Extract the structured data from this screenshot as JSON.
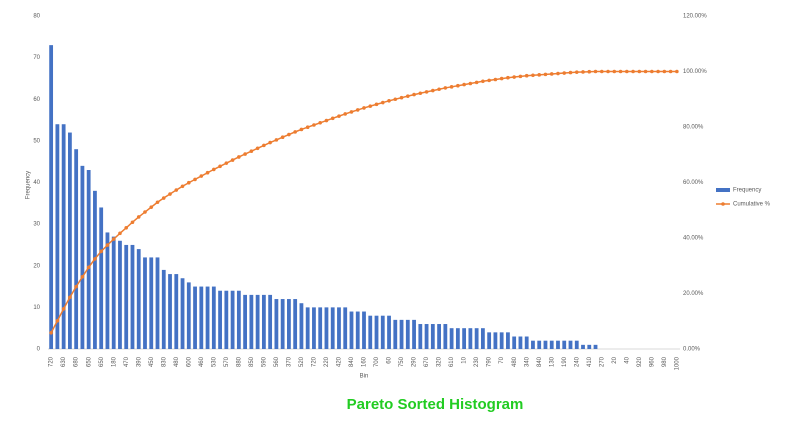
{
  "chart_data": {
    "type": "pareto",
    "title": "Pareto Sorted Histogram",
    "x_label": "Bin",
    "y_label": "Frequency",
    "categories": [
      "720",
      null,
      "630",
      null,
      "680",
      null,
      "650",
      null,
      "650",
      null,
      "180",
      null,
      "470",
      null,
      "390",
      null,
      "450",
      null,
      "830",
      null,
      "480",
      null,
      "600",
      null,
      "460",
      null,
      "530",
      null,
      "570",
      null,
      "880",
      null,
      "850",
      null,
      "590",
      null,
      "560",
      null,
      "370",
      null,
      "520",
      null,
      "720",
      null,
      "220",
      null,
      "420",
      null,
      "840",
      null,
      "160",
      null,
      "700",
      null,
      "60",
      null,
      "750",
      null,
      "290",
      null,
      "670",
      null,
      "320",
      null,
      "610",
      null,
      "10",
      null,
      "230",
      null,
      "790",
      null,
      "70",
      null,
      "480",
      null,
      "340",
      null,
      "840",
      null,
      "130",
      null,
      "190",
      null,
      "240",
      null,
      "410",
      null,
      "270",
      null,
      "20",
      null,
      "40",
      null,
      "920",
      null,
      "960",
      null,
      "980",
      null,
      "1000"
    ],
    "series": [
      {
        "name": "Frequency",
        "color": "#4472c4",
        "values": [
          73,
          54,
          54,
          52,
          48,
          44,
          43,
          38,
          34,
          28,
          27,
          26,
          25,
          25,
          24,
          22,
          22,
          22,
          19,
          18,
          18,
          17,
          16,
          15,
          15,
          15,
          15,
          14,
          14,
          14,
          14,
          13,
          13,
          13,
          13,
          13,
          12,
          12,
          12,
          12,
          11,
          10,
          10,
          10,
          10,
          10,
          10,
          10,
          9,
          9,
          9,
          8,
          8,
          8,
          8,
          7,
          7,
          7,
          7,
          6,
          6,
          6,
          6,
          6,
          5,
          5,
          5,
          5,
          5,
          5,
          4,
          4,
          4,
          4,
          3,
          3,
          3,
          2,
          2,
          2,
          2,
          2,
          2,
          2,
          2,
          1,
          1,
          1,
          0,
          0,
          0,
          0,
          0,
          0,
          0,
          0,
          0,
          0,
          0,
          0,
          0
        ]
      },
      {
        "name": "Cumulative %",
        "color": "#ed7d31",
        "axis": "y2",
        "values": [
          5.84,
          10.16,
          14.48,
          18.64,
          22.48,
          26.0,
          29.44,
          32.48,
          35.2,
          37.44,
          39.6,
          41.68,
          43.68,
          45.68,
          47.6,
          49.36,
          51.12,
          52.88,
          54.4,
          55.84,
          57.28,
          58.64,
          59.92,
          61.12,
          62.32,
          63.52,
          64.72,
          65.84,
          66.96,
          68.08,
          69.2,
          70.24,
          71.28,
          72.32,
          73.36,
          74.4,
          75.36,
          76.32,
          77.28,
          78.24,
          79.12,
          79.92,
          80.72,
          81.52,
          82.32,
          83.12,
          83.92,
          84.72,
          85.44,
          86.16,
          86.88,
          87.52,
          88.16,
          88.8,
          89.44,
          90.0,
          90.56,
          91.12,
          91.68,
          92.16,
          92.64,
          93.12,
          93.6,
          94.08,
          94.48,
          94.88,
          95.28,
          95.68,
          96.08,
          96.48,
          96.8,
          97.12,
          97.44,
          97.76,
          98.0,
          98.24,
          98.48,
          98.64,
          98.8,
          98.96,
          99.12,
          99.28,
          99.44,
          99.6,
          99.76,
          99.84,
          99.92,
          100,
          100,
          100,
          100,
          100,
          100,
          100,
          100,
          100,
          100,
          100,
          100,
          100,
          100
        ]
      }
    ],
    "ylim": [
      0,
      80
    ],
    "yticks": [
      0,
      10,
      20,
      30,
      40,
      50,
      60,
      70,
      80
    ],
    "y2lim": [
      0,
      120
    ],
    "y2ticks": [
      {
        "value": 0,
        "label": "0.00%"
      },
      {
        "value": 20,
        "label": "20.00%"
      },
      {
        "value": 40,
        "label": "40.00%"
      },
      {
        "value": 60,
        "label": "60.00%"
      },
      {
        "value": 80,
        "label": "80.00%"
      },
      {
        "value": 100,
        "label": "100.00%"
      },
      {
        "value": 120,
        "label": "120.00%"
      }
    ],
    "grid": false,
    "legend": "right"
  }
}
